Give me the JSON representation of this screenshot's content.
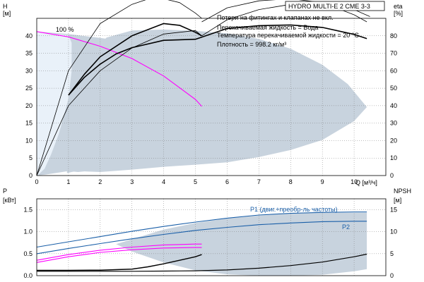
{
  "chart_data": [
    {
      "type": "line",
      "title": "HYDRO MULTI-E 2 CME 3-3",
      "notes": [
        "Потери на фитингах и клапанах не вкл.",
        "Перекачиваемая жидкость = Вода",
        "Температура перекачиваемой жидкости = 20 °C",
        "Плотность = 998.2 кг/м³"
      ],
      "xlabel": "Q [м³/ч]",
      "ylabel": "H",
      "ylabel_unit": "[м]",
      "y2label": "eta",
      "y2label_unit": "[%]",
      "xlim": [
        0,
        11
      ],
      "ylim": [
        0,
        45
      ],
      "y2lim": [
        0,
        90
      ],
      "x_ticks": [
        "0",
        "1",
        "2",
        "3",
        "4",
        "5",
        "6",
        "7",
        "8",
        "9",
        "10"
      ],
      "y_ticks": [
        "0",
        "5",
        "10",
        "15",
        "20",
        "25",
        "30",
        "35",
        "40"
      ],
      "y2_ticks": [
        "0",
        "10",
        "20",
        "30",
        "40",
        "50",
        "60",
        "70",
        "80"
      ],
      "annotations": [
        "100 %"
      ],
      "grid": true,
      "series": [
        {
          "role": "envelope",
          "color": "#c8d3de",
          "upper": {
            "x": [
              0,
              1,
              2,
              3,
              4,
              5,
              6,
              7,
              8,
              9,
              10,
              10.4
            ],
            "y": [
              41.2,
              40.5,
              39.4,
              38.1,
              36.6,
              34.9,
              32.8,
              30.4,
              27.6,
              24.5,
              20.9,
              19.6
            ]
          },
          "lower": {
            "x": [
              0,
              0.3,
              1,
              1.3,
              1.5,
              2,
              3,
              4,
              5,
              6,
              7,
              8,
              9,
              10,
              10.4
            ],
            "y": [
              0,
              0.3,
              1.3,
              1.0,
              1.2,
              1.0,
              1.7,
              2.5,
              3.1,
              3.8,
              5.3,
              7.3,
              10.2,
              15.6,
              19.6
            ]
          }
        },
        {
          "role": "efficiency-envelope",
          "color": "#c8d3de",
          "x": [
            0.95,
            1.0,
            1.2,
            1.6,
            2.2,
            3.0,
            4.0,
            5.0,
            6.0,
            7.0,
            8.0,
            9.0,
            9.8,
            10.4
          ],
          "y": [
            0.7,
            14,
            26,
            34,
            39.5,
            41.5,
            41.8,
            41.4,
            40.7,
            39.1,
            36.3,
            31.7,
            26.2,
            19.6
          ]
        },
        {
          "role": "left-shade",
          "color": "#e9f1f9",
          "x": [
            0,
            0.1,
            0.3,
            0.6,
            1.0,
            1.1,
            1.1,
            1.0,
            0.7,
            0.45,
            0.25,
            0.05,
            0
          ],
          "y": [
            41.2,
            41.1,
            40.8,
            40.5,
            40.2,
            38.0,
            30.0,
            22.0,
            12.0,
            6.0,
            2.0,
            0.2,
            0
          ]
        },
        {
          "name": "Перекачиваемая жидкость = Вода",
          "role": "duty-curve",
          "color": "#ff00ff",
          "x": [
            0,
            1,
            2,
            3,
            4,
            5,
            5.2
          ],
          "y": [
            41.2,
            39.7,
            37.0,
            33.5,
            28.5,
            21.8,
            19.8
          ]
        },
        {
          "role": "eta-100",
          "color": "#000000",
          "width": 1.6,
          "x": [
            1,
            1.5,
            2,
            2.5,
            3,
            4,
            5,
            6,
            7,
            8,
            9,
            10,
            10.4
          ],
          "y": [
            23,
            28.1,
            31.9,
            34.8,
            36.6,
            38.7,
            39.0,
            42.1,
            42.9,
            43.1,
            42.4,
            40.4,
            39.2
          ]
        },
        {
          "role": "eta-curve",
          "color": "#000000",
          "width": 0.8,
          "x": [
            0,
            1,
            2,
            3,
            3.5,
            4,
            4.5,
            5,
            5.2
          ],
          "y": [
            0,
            30,
            43.5,
            49,
            50.5,
            50.6,
            49.5,
            46.5,
            45
          ]
        },
        {
          "role": "eta-curve",
          "color": "#000000",
          "width": 0.8,
          "x": [
            0,
            1,
            2,
            3,
            4,
            5,
            5.2
          ],
          "y": [
            0,
            20,
            30,
            36.5,
            40.5,
            41.5,
            40
          ]
        },
        {
          "role": "eta-curve",
          "color": "#000000",
          "width": 0.8,
          "x": [
            5.2,
            6,
            7,
            8,
            9,
            10,
            10.5
          ],
          "y": [
            40,
            44.6,
            47.5,
            49,
            49.4,
            47.5,
            45.5
          ]
        },
        {
          "role": "eta-curve",
          "color": "#000000",
          "width": 0.8,
          "x": [
            5.2,
            6,
            7,
            8,
            9,
            10,
            10.4
          ],
          "y": [
            44,
            48,
            50,
            50.6,
            49.5,
            46,
            44
          ]
        },
        {
          "role": "eta-curve",
          "color": "#000000",
          "width": 1.6,
          "x": [
            1,
            1.5,
            2,
            3,
            4,
            4.5,
            5,
            5.2
          ],
          "y": [
            23,
            29,
            34,
            40,
            43.5,
            43,
            41,
            40
          ]
        }
      ]
    },
    {
      "type": "line",
      "ylabel": "P",
      "ylabel_unit": "[кВт]",
      "y2label": "NPSH",
      "y2label_unit": "[м]",
      "xlim": [
        0,
        11
      ],
      "ylim": [
        0,
        1.75
      ],
      "y2lim": [
        0,
        17.5
      ],
      "y_ticks": [
        "0.0",
        "0.5",
        "1.0",
        "1.5"
      ],
      "y2_ticks": [
        "0",
        "5",
        "10",
        "15"
      ],
      "grid": true,
      "series": [
        {
          "role": "envelope",
          "color": "#c8d3de",
          "upper": {
            "x": [
              2.5,
              4,
              5,
              6,
              7,
              8,
              9,
              10,
              10.4
            ],
            "y": [
              0.72,
              1.05,
              1.2,
              1.3,
              1.37,
              1.41,
              1.43,
              1.43,
              1.43
            ]
          },
          "lower": {
            "x": [
              2.5,
              3,
              4,
              5,
              6,
              7,
              8,
              9,
              10,
              10.4
            ],
            "y": [
              0.72,
              0.55,
              0.3,
              0.12,
              0.03,
              0.0,
              0.0,
              0.02,
              0.1,
              0.15
            ]
          }
        },
        {
          "name": "P1 (двиг.+преобр-ль частоты)",
          "color": "#1a5fa8",
          "x": [
            0,
            1,
            2,
            3,
            4,
            5,
            6,
            7,
            8,
            9,
            10,
            10.4
          ],
          "y": [
            0.65,
            0.77,
            0.89,
            1.01,
            1.12,
            1.22,
            1.31,
            1.38,
            1.42,
            1.44,
            1.45,
            1.45
          ]
        },
        {
          "name": "P2",
          "color": "#1a5fa8",
          "x": [
            0,
            1,
            2,
            3,
            4,
            5,
            6,
            7,
            8,
            9,
            10,
            10.4
          ],
          "y": [
            0.5,
            0.62,
            0.73,
            0.84,
            0.94,
            1.03,
            1.1,
            1.16,
            1.2,
            1.23,
            1.24,
            1.24
          ]
        },
        {
          "role": "power-curve",
          "color": "#ff00ff",
          "x": [
            0,
            1,
            2,
            3,
            4,
            5,
            5.2
          ],
          "y": [
            0.35,
            0.48,
            0.58,
            0.65,
            0.7,
            0.72,
            0.72
          ]
        },
        {
          "role": "power-curve",
          "color": "#ff00ff",
          "x": [
            0,
            1,
            2,
            3,
            4,
            5,
            5.2
          ],
          "y": [
            0.3,
            0.43,
            0.53,
            0.59,
            0.63,
            0.64,
            0.64
          ]
        },
        {
          "role": "npsh",
          "color": "#000000",
          "width": 1.5,
          "axis": "y2",
          "x": [
            0,
            1,
            2,
            3,
            3.5,
            4,
            4.5,
            5,
            5.2
          ],
          "y": [
            1.2,
            1.2,
            1.25,
            1.5,
            2.0,
            2.7,
            3.5,
            4.3,
            4.8
          ]
        },
        {
          "role": "npsh",
          "color": "#000000",
          "width": 1.2,
          "axis": "y2",
          "x": [
            0,
            1,
            2,
            3,
            4,
            5,
            6,
            7,
            8,
            9,
            10,
            10.4
          ],
          "y": [
            1.0,
            1.0,
            1.0,
            1.0,
            1.05,
            1.1,
            1.3,
            1.7,
            2.3,
            3.1,
            4.3,
            4.9
          ]
        }
      ]
    }
  ]
}
